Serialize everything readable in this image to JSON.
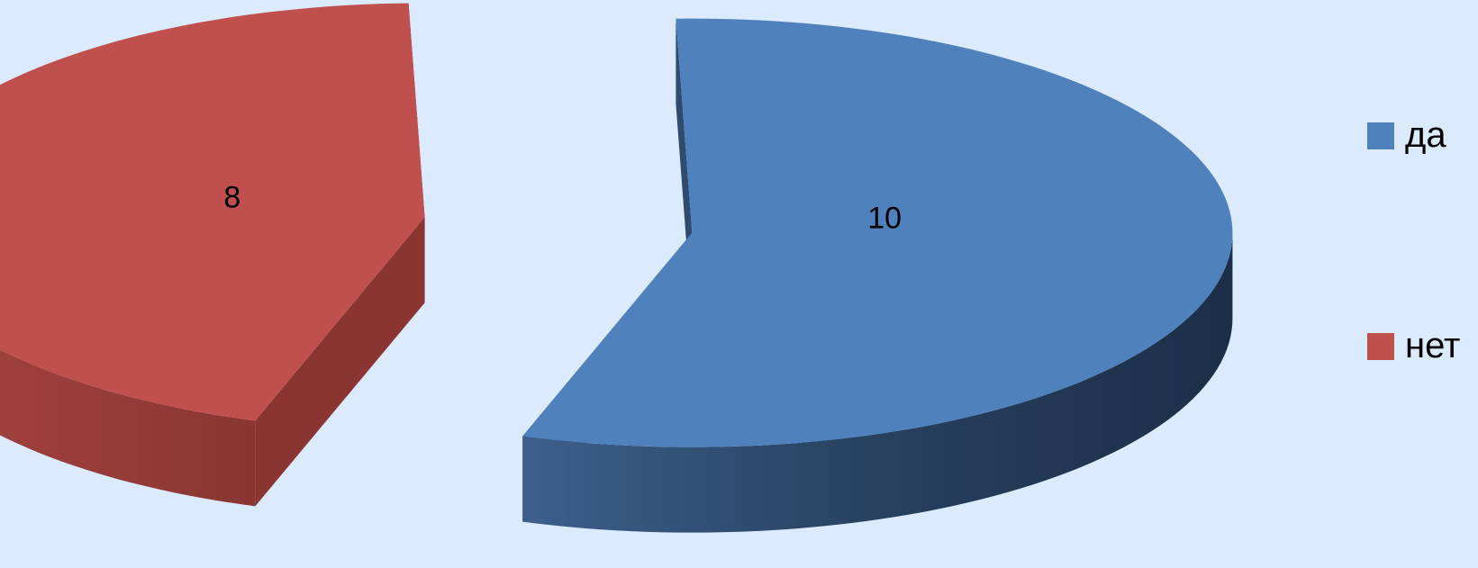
{
  "chart_data": {
    "type": "pie",
    "categories": [
      "да",
      "нет"
    ],
    "values": [
      10,
      8
    ],
    "data_labels": [
      "10",
      "8"
    ],
    "colors": [
      "#4f81bd",
      "#c0504d"
    ],
    "three_d": true,
    "exploded": true,
    "legend_position": "right"
  },
  "legend": {
    "items": [
      {
        "label": "да",
        "color": "#4f81bd"
      },
      {
        "label": "нет",
        "color": "#c0504d"
      }
    ]
  }
}
